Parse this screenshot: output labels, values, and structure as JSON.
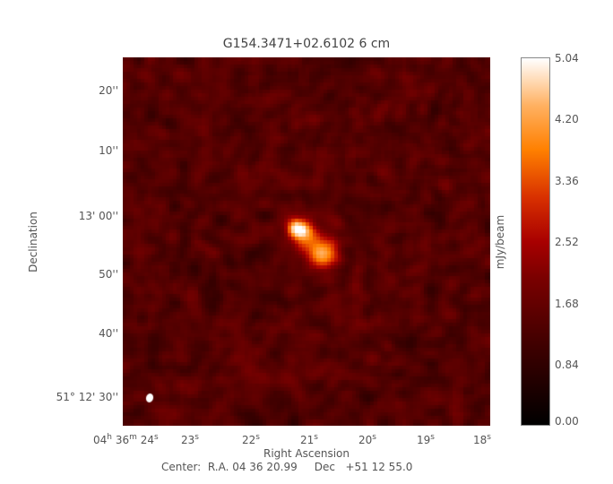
{
  "chart_data": {
    "type": "heatmap",
    "title": "G154.3471+02.6102 6 cm",
    "xlabel": "Right Ascension",
    "ylabel": "Declination",
    "x_ticks": [
      {
        "h": "04",
        "m": "36",
        "s": "24"
      },
      {
        "s": "23"
      },
      {
        "s": "22"
      },
      {
        "s": "21"
      },
      {
        "s": "20"
      },
      {
        "s": "19"
      },
      {
        "s": "18"
      }
    ],
    "y_ticks": [
      "20''",
      "10''",
      "13' 00''",
      "50''",
      "40''",
      "51° 12' 30''"
    ],
    "colorbar": {
      "label": "mJy/beam",
      "ticks": [
        "5.04",
        "4.20",
        "3.36",
        "2.52",
        "1.68",
        "0.84",
        "0.00"
      ],
      "range": [
        0.0,
        5.04
      ],
      "colormap": [
        "#000000",
        "#7a0000",
        "#a80000",
        "#ff8000",
        "#ffffff"
      ]
    },
    "source": {
      "peak_mJy_per_beam": 5.04,
      "ra": "04 36 21.1",
      "dec": "+51 12 54"
    },
    "background_level_mJy_per_beam": 1.4,
    "beam_marker_color": "#ffffff",
    "center_text": "Center:  R.A. 04 36 20.99     Dec   +51 12 55.0"
  }
}
